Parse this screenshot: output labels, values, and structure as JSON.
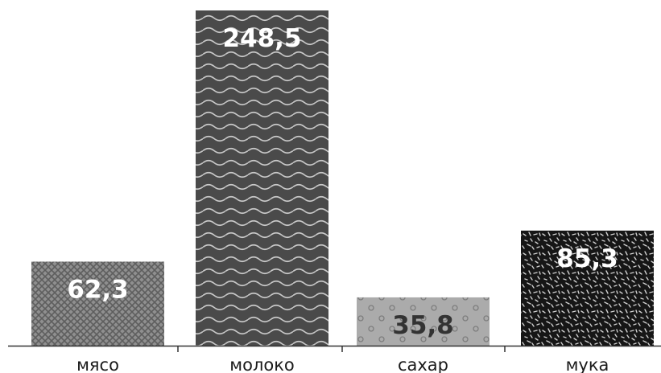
{
  "chart_data": {
    "type": "bar",
    "categories": [
      "мясо",
      "молоко",
      "сахар",
      "мука"
    ],
    "values": [
      62.3,
      248.5,
      35.8,
      85.3
    ],
    "value_labels": [
      "62,3",
      "248,5",
      "35,8",
      "85,3"
    ],
    "title": "",
    "xlabel": "",
    "ylabel": "",
    "ylim": [
      0,
      248.5
    ],
    "grid": false,
    "legend": "none"
  },
  "styles": {
    "bars": [
      {
        "pattern": "crosshatch",
        "base": "#8a8a8a",
        "line": "#5a5a5a",
        "label_color": "#ffffff"
      },
      {
        "pattern": "waves",
        "base": "#4a4a4a",
        "line": "#c8c8c8",
        "label_color": "#ffffff"
      },
      {
        "pattern": "dots",
        "base": "#ababab",
        "line": "#7d7d7d",
        "label_color": "#333333"
      },
      {
        "pattern": "speckle",
        "base": "#161616",
        "line": "#d0d0d0",
        "label_color": "#ffffff"
      }
    ],
    "axis_color": "#333333"
  }
}
